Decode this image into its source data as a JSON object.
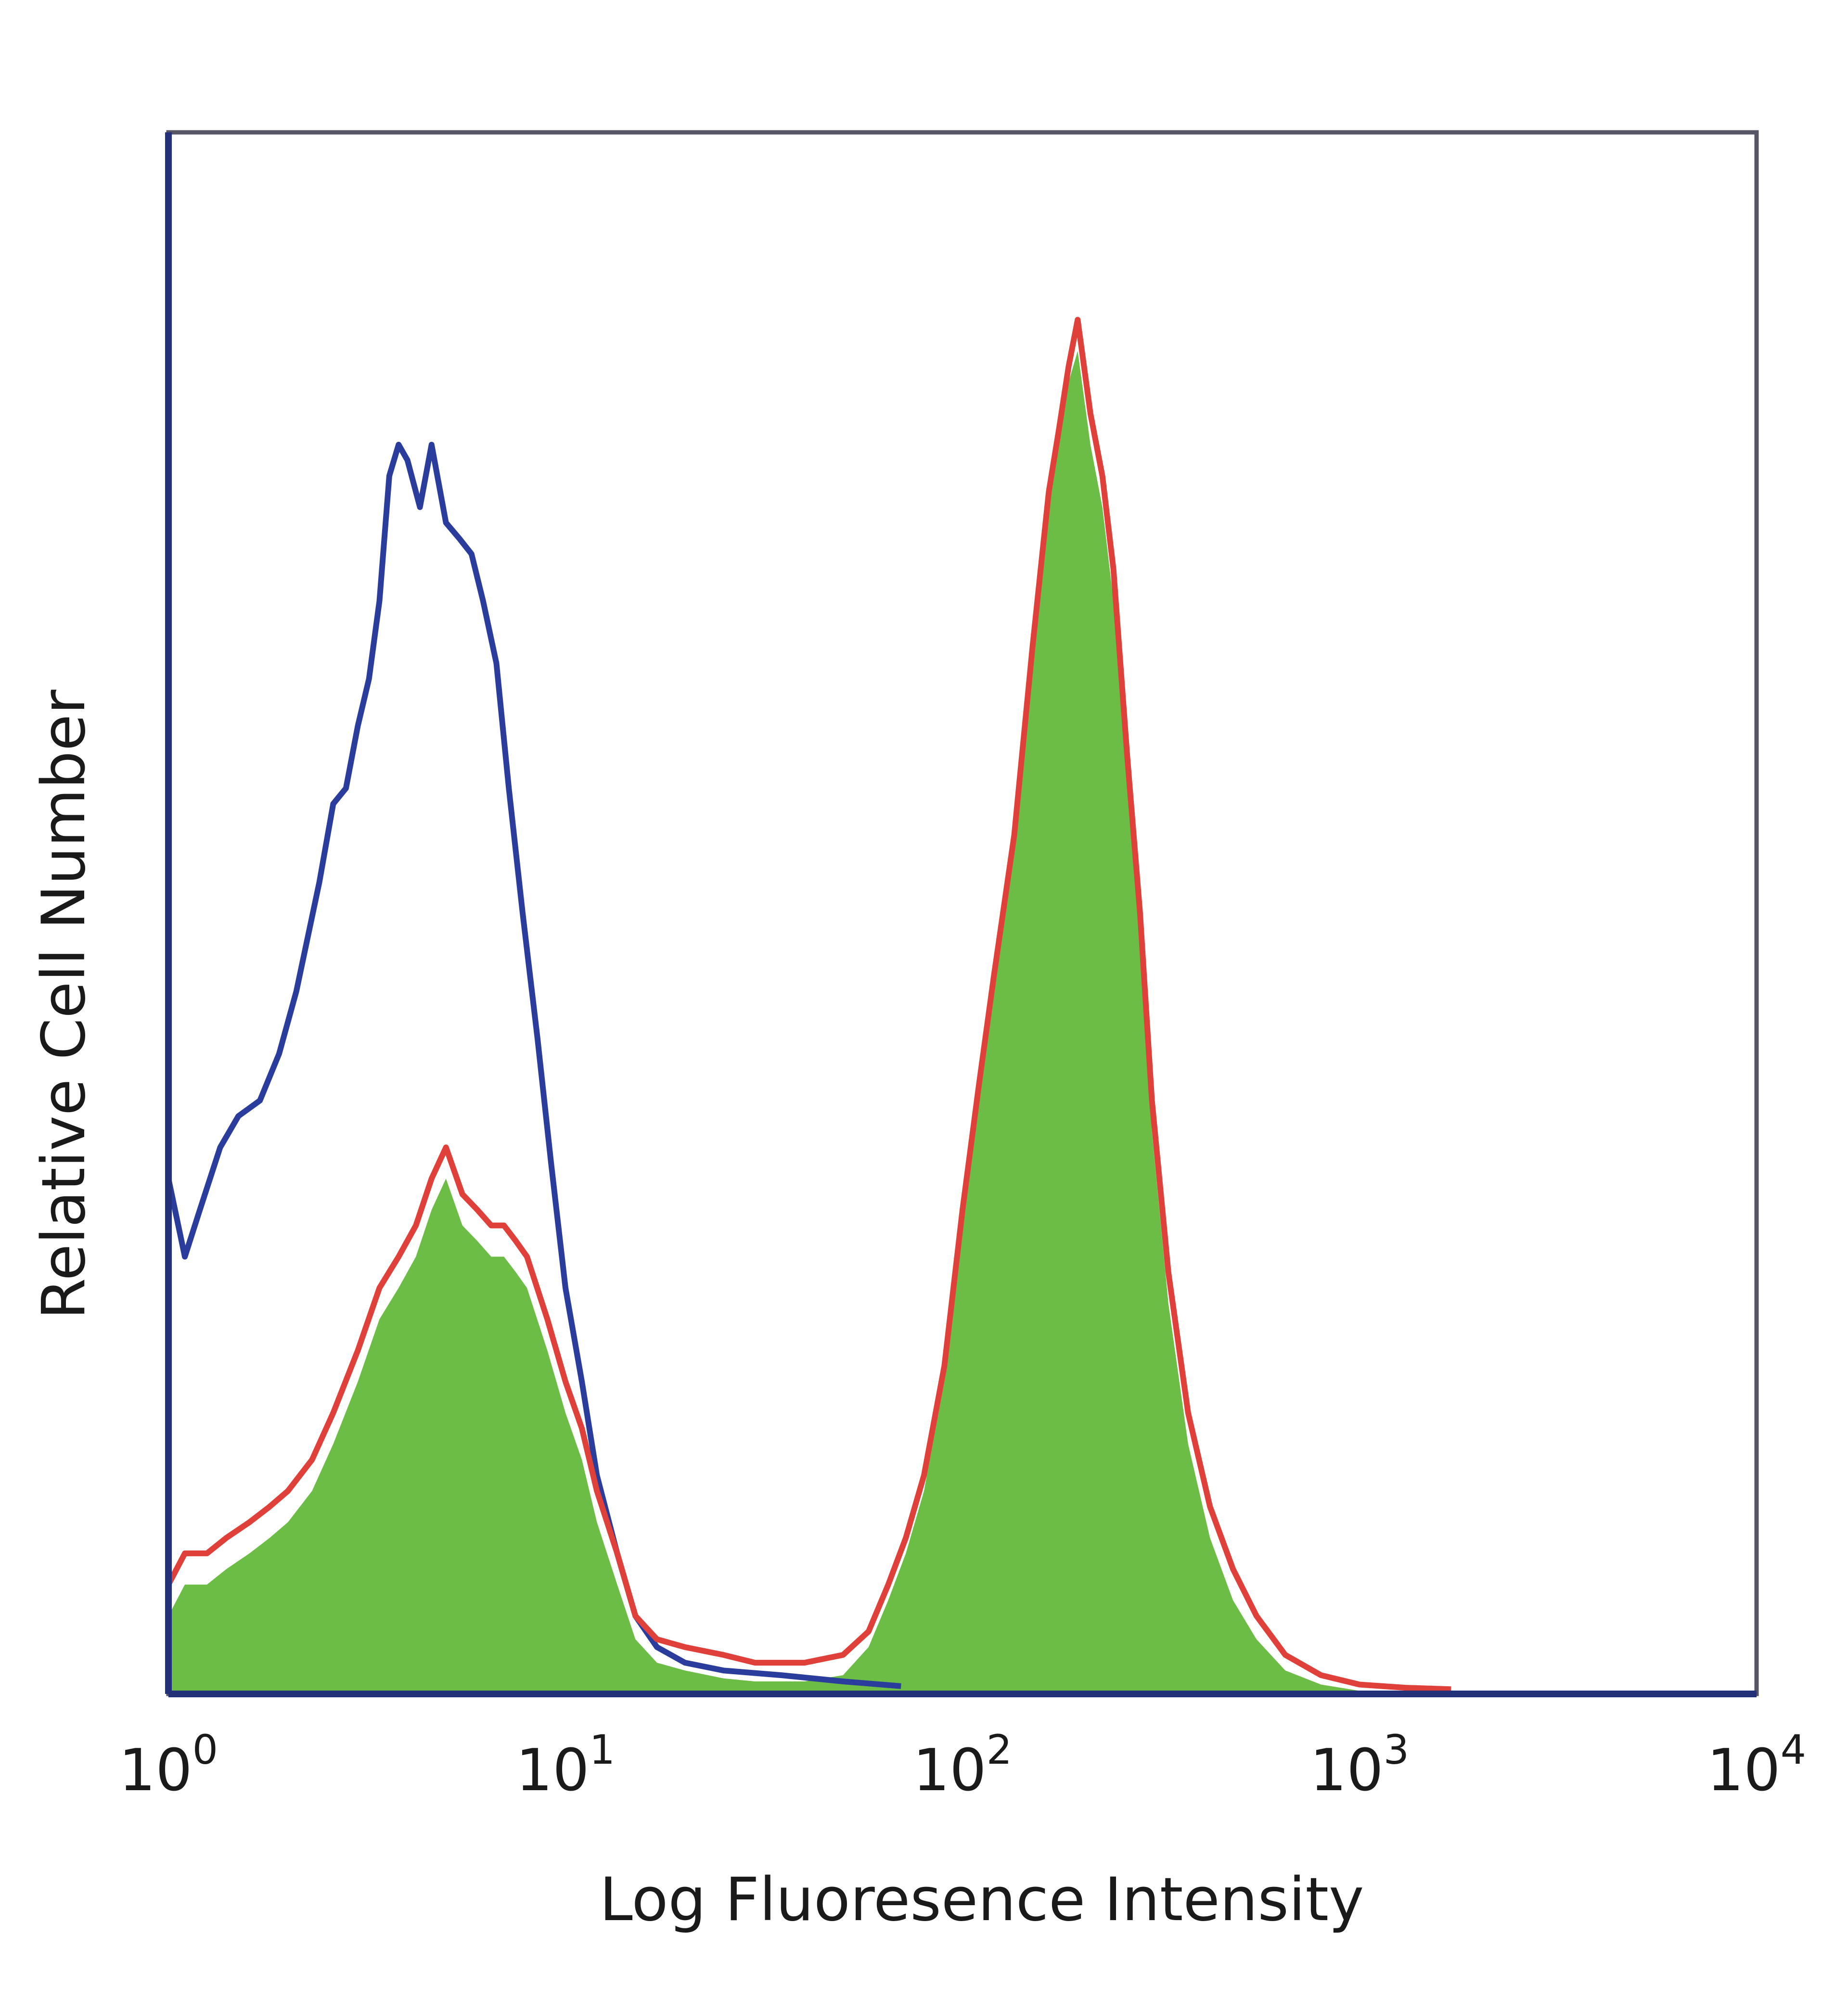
{
  "chart_data": {
    "type": "area",
    "title": "",
    "xlabel": "Log Fluoresence Intensity",
    "ylabel": "Relative Cell Number",
    "xscale": "log",
    "xlim": [
      1,
      10000
    ],
    "ylim": [
      0,
      1
    ],
    "grid": false,
    "legend": "none",
    "x_ticks": [
      {
        "base": "10",
        "exp": "0",
        "value": 1
      },
      {
        "base": "10",
        "exp": "1",
        "value": 10
      },
      {
        "base": "10",
        "exp": "2",
        "value": 100
      },
      {
        "base": "10",
        "exp": "3",
        "value": 1000
      },
      {
        "base": "10",
        "exp": "4",
        "value": 10000
      }
    ],
    "series": [
      {
        "style": "outline",
        "color": "#2b3d9c",
        "x": [
          1.0,
          1.1,
          1.2,
          1.35,
          1.5,
          1.7,
          1.9,
          2.1,
          2.4,
          2.6,
          2.8,
          3.0,
          3.2,
          3.4,
          3.6,
          3.8,
          4.0,
          4.3,
          4.6,
          5.0,
          5.4,
          5.8,
          6.2,
          6.7,
          7.2,
          7.8,
          8.5,
          9.2,
          10.0,
          11.0,
          12.0,
          13.5,
          15.0,
          17.0,
          20.0,
          25.0,
          35.0,
          50.0,
          70.0
        ],
        "y": [
          0.33,
          0.28,
          0.31,
          0.35,
          0.37,
          0.38,
          0.41,
          0.45,
          0.52,
          0.57,
          0.58,
          0.62,
          0.65,
          0.7,
          0.78,
          0.8,
          0.79,
          0.76,
          0.8,
          0.75,
          0.74,
          0.73,
          0.7,
          0.66,
          0.58,
          0.5,
          0.42,
          0.34,
          0.26,
          0.2,
          0.14,
          0.09,
          0.05,
          0.03,
          0.02,
          0.015,
          0.012,
          0.008,
          0.005
        ]
      },
      {
        "style": "outline",
        "color": "#e0403a",
        "x": [
          1.0,
          1.1,
          1.25,
          1.4,
          1.6,
          1.8,
          2.0,
          2.3,
          2.6,
          3.0,
          3.4,
          3.8,
          4.2,
          4.6,
          5.0,
          5.5,
          6.0,
          6.5,
          7.0,
          7.5,
          8.0,
          9.0,
          10.0,
          11.0,
          12.0,
          13.5,
          15.0,
          17.0,
          20.0,
          25.0,
          30.0,
          40.0,
          50.0,
          58.0,
          65.0,
          72.0,
          80.0,
          90.0,
          100.0,
          110.0,
          120.0,
          135.0,
          150.0,
          165.0,
          175.0,
          185.0,
          195.0,
          210.0,
          225.0,
          240.0,
          260.0,
          280.0,
          300.0,
          330.0,
          370.0,
          420.0,
          480.0,
          550.0,
          650.0,
          800.0,
          1000.0,
          1300.0,
          1700.0
        ],
        "y": [
          0.07,
          0.09,
          0.09,
          0.1,
          0.11,
          0.12,
          0.13,
          0.15,
          0.18,
          0.22,
          0.26,
          0.28,
          0.3,
          0.33,
          0.35,
          0.32,
          0.31,
          0.3,
          0.3,
          0.29,
          0.28,
          0.24,
          0.2,
          0.17,
          0.13,
          0.09,
          0.05,
          0.035,
          0.03,
          0.025,
          0.02,
          0.02,
          0.025,
          0.04,
          0.07,
          0.1,
          0.14,
          0.21,
          0.31,
          0.39,
          0.46,
          0.55,
          0.67,
          0.77,
          0.81,
          0.85,
          0.88,
          0.82,
          0.78,
          0.72,
          0.6,
          0.5,
          0.38,
          0.27,
          0.18,
          0.12,
          0.08,
          0.05,
          0.025,
          0.012,
          0.006,
          0.004,
          0.003
        ]
      },
      {
        "style": "filled",
        "color": "#6bbd45",
        "x": [
          1.0,
          1.1,
          1.25,
          1.4,
          1.6,
          1.8,
          2.0,
          2.3,
          2.6,
          3.0,
          3.4,
          3.8,
          4.2,
          4.6,
          5.0,
          5.5,
          6.0,
          6.5,
          7.0,
          7.5,
          8.0,
          9.0,
          10.0,
          11.0,
          12.0,
          13.5,
          15.0,
          17.0,
          20.0,
          25.0,
          30.0,
          40.0,
          50.0,
          58.0,
          65.0,
          72.0,
          80.0,
          90.0,
          100.0,
          110.0,
          120.0,
          135.0,
          150.0,
          165.0,
          175.0,
          185.0,
          195.0,
          210.0,
          225.0,
          240.0,
          260.0,
          280.0,
          300.0,
          330.0,
          370.0,
          420.0,
          480.0,
          550.0,
          650.0,
          800.0,
          1000.0,
          1300.0,
          1700.0
        ],
        "y": [
          0.05,
          0.07,
          0.07,
          0.08,
          0.09,
          0.1,
          0.11,
          0.13,
          0.16,
          0.2,
          0.24,
          0.26,
          0.28,
          0.31,
          0.33,
          0.3,
          0.29,
          0.28,
          0.28,
          0.27,
          0.26,
          0.22,
          0.18,
          0.15,
          0.11,
          0.07,
          0.035,
          0.02,
          0.015,
          0.01,
          0.008,
          0.008,
          0.012,
          0.03,
          0.06,
          0.09,
          0.13,
          0.2,
          0.3,
          0.38,
          0.45,
          0.54,
          0.66,
          0.76,
          0.8,
          0.84,
          0.86,
          0.8,
          0.76,
          0.7,
          0.58,
          0.48,
          0.36,
          0.25,
          0.16,
          0.1,
          0.06,
          0.035,
          0.015,
          0.006,
          0.002,
          0.001,
          0.0
        ]
      }
    ]
  }
}
